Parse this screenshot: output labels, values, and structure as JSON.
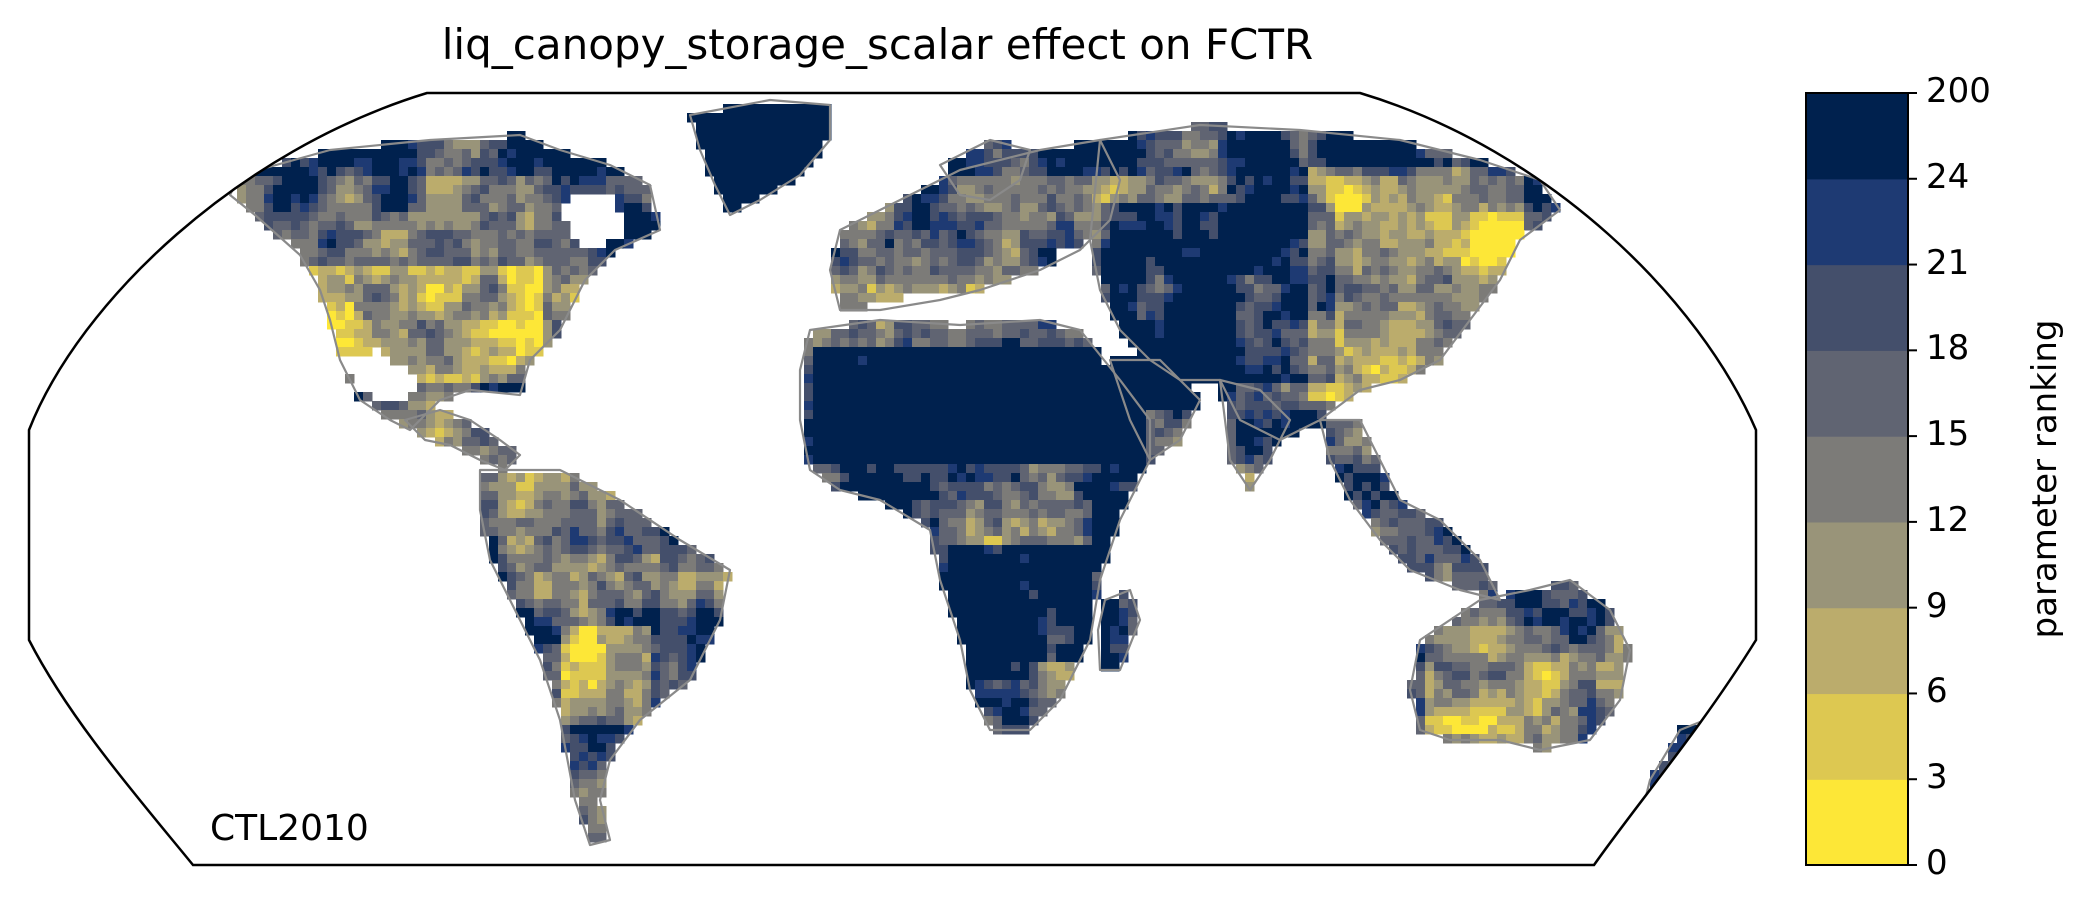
{
  "title": "liq_canopy_storage_scalar effect on FCTR",
  "annotation": "CTL2010",
  "colorbar": {
    "label": "parameter ranking",
    "ticks": [
      "0",
      "3",
      "6",
      "9",
      "12",
      "15",
      "18",
      "21",
      "24",
      "200"
    ],
    "colors": [
      "#fde737",
      "#ddc851",
      "#bbac6c",
      "#999479",
      "#7c7b78",
      "#606472",
      "#444f6b",
      "#1e3a73",
      "#00214e"
    ]
  },
  "map": {
    "projection": "Robinson",
    "outline_color": "#000000",
    "coastline_color": "#8a8a8a"
  }
}
